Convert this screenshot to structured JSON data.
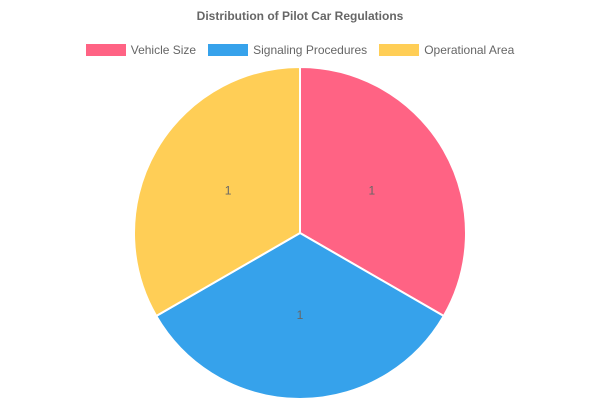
{
  "chart_data": {
    "type": "pie",
    "title": "Distribution of Pilot Car Regulations",
    "categories": [
      "Vehicle Size",
      "Signaling Procedures",
      "Operational Area"
    ],
    "values": [
      1,
      1,
      1
    ],
    "colors": [
      "#ff6384",
      "#36a2eb",
      "#ffce56"
    ],
    "legend_position": "top",
    "data_labels": [
      "1",
      "1",
      "1"
    ]
  }
}
